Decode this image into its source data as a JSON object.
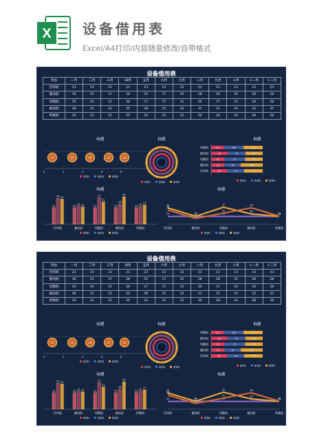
{
  "header": {
    "title": "设备借用表",
    "subtitle": "Excel/A4打印/内容随意修改/自带格式",
    "logo_letter": "X",
    "logo_icon": "excel-icon"
  },
  "sheet": {
    "title": "设备借用表",
    "table": {
      "columns": [
        "月份",
        "一月",
        "二月",
        "三月",
        "四月",
        "五月",
        "六月",
        "七月",
        "八月",
        "九月",
        "十月",
        "十一月",
        "十二月"
      ],
      "rows": [
        [
          "打印机",
          "23",
          "23",
          "23",
          "23",
          "23",
          "23",
          "23",
          "23",
          "23",
          "23",
          "23",
          "23"
        ],
        [
          "激光机",
          "36",
          "25",
          "37",
          "28",
          "25",
          "27",
          "25",
          "28",
          "28",
          "35",
          "28",
          "28"
        ],
        [
          "切割机",
          "35",
          "24",
          "31",
          "38",
          "27",
          "37",
          "31",
          "36",
          "37",
          "33",
          "24",
          "28"
        ],
        [
          "裁光机",
          "28",
          "25",
          "33",
          "25",
          "28",
          "25",
          "33",
          "31",
          "31",
          "24",
          "33",
          "31"
        ],
        [
          "传真机",
          "29",
          "23",
          "25",
          "25",
          "34",
          "31",
          "25",
          "30",
          "28",
          "24",
          "28",
          "26"
        ]
      ]
    },
    "chart_labels": {
      "chart_title": "标题",
      "legend": [
        "系列1",
        "系列2",
        "系列3"
      ]
    },
    "bubble_chart": {
      "values": [
        "27",
        "23",
        "29",
        "27",
        "23"
      ],
      "axis": [
        "0",
        "2",
        "4",
        "6",
        "8"
      ]
    },
    "hbar_chart": {
      "categories": [
        "传真机",
        "裁光机",
        "切割机",
        "激光机",
        "打印机"
      ],
      "series1": [
        "23",
        "23",
        "23",
        "23",
        "23"
      ],
      "series2": [
        "36",
        "25",
        "37",
        "28",
        "25"
      ],
      "series3": [
        "35",
        "24",
        "31",
        "38",
        "27"
      ]
    },
    "column_chart": {
      "categories": [
        "打印机",
        "激光机",
        "切割机",
        "裁光机",
        "传真机"
      ],
      "series1": [
        "23",
        "23",
        "23",
        "23",
        "23"
      ],
      "series2": [
        "36",
        "25",
        "37",
        "28",
        "25"
      ],
      "series3": [
        "35",
        "24",
        "31",
        "38",
        "27"
      ]
    },
    "line_chart": {
      "categories": [
        "打印机",
        "激光机",
        "切割机",
        "裁光机",
        "传真机"
      ],
      "series1": [
        "23",
        "23",
        "23",
        "23",
        "23"
      ],
      "series2": [
        "36",
        "25",
        "37",
        "28",
        "25"
      ],
      "series3": [
        "35",
        "24",
        "31",
        "38",
        "27"
      ]
    }
  },
  "colors": {
    "sheet_bg": "#15243f",
    "series1": "#e23b5a",
    "series2": "#3b78d8",
    "series3": "#e8a53a"
  }
}
